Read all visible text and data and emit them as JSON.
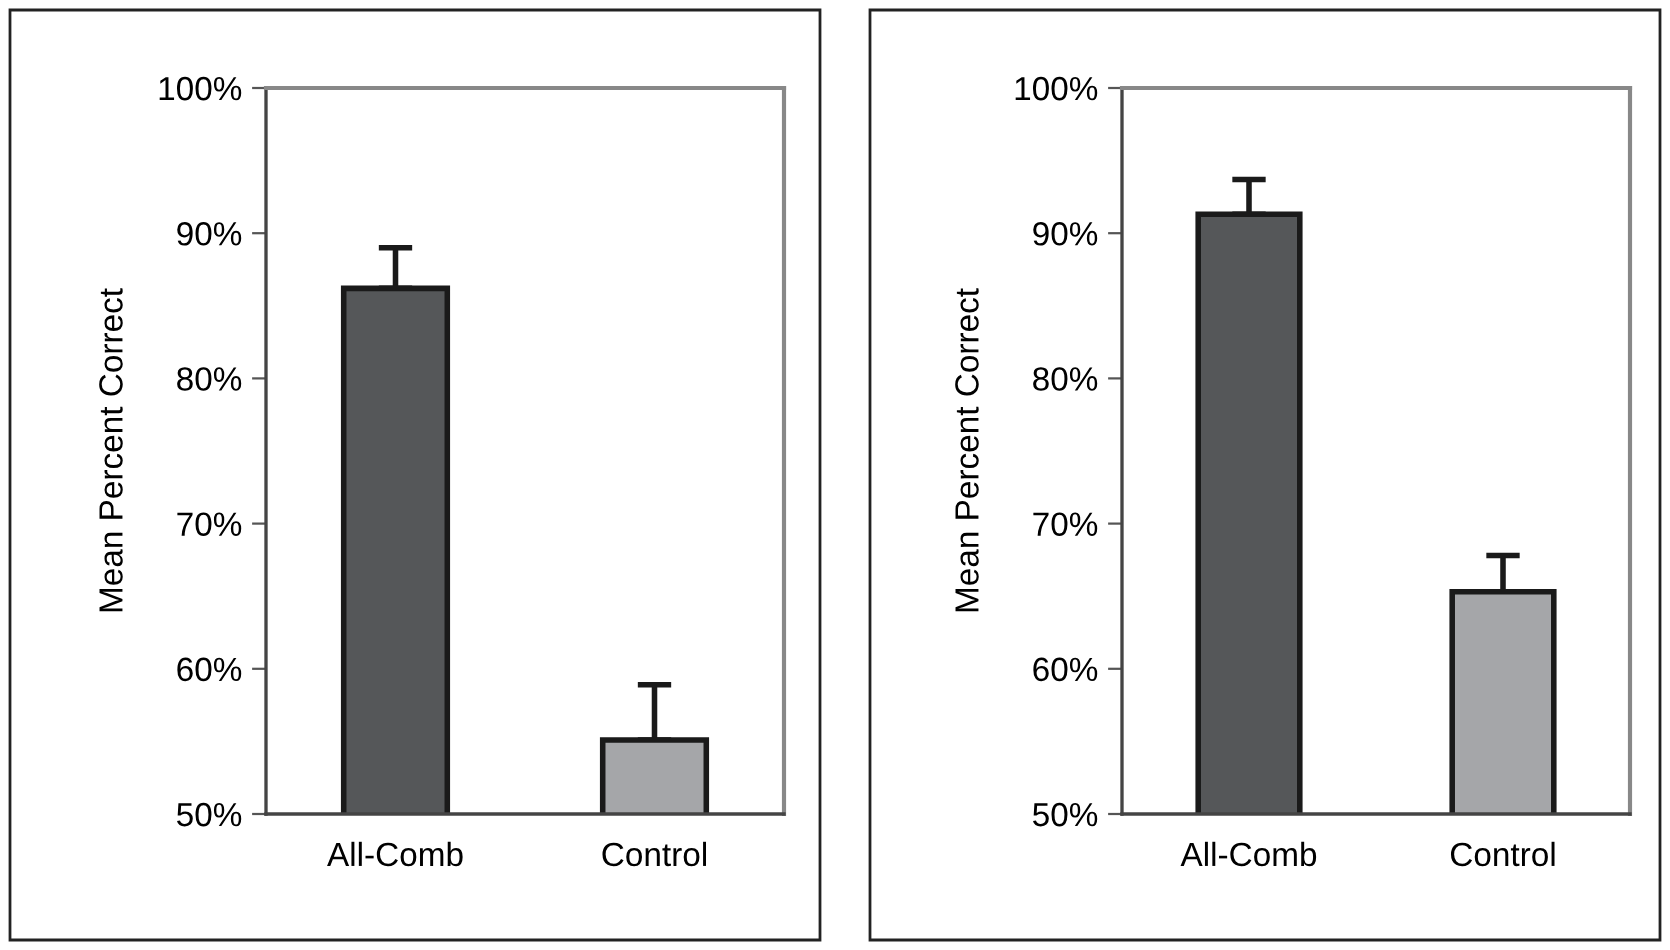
{
  "chart_data": [
    {
      "type": "bar",
      "ylabel": "Mean Percent Correct",
      "categories": [
        "All-Comb",
        "Control"
      ],
      "values": [
        86.2,
        55.1
      ],
      "colors": [
        "#555759",
        "#a5a6a9"
      ],
      "errors": [
        [
          86.2,
          89.0
        ],
        [
          55.1,
          58.9
        ]
      ],
      "ylim": [
        50,
        100
      ],
      "yticks": [
        {
          "value": 50,
          "label": "50%"
        },
        {
          "value": 60,
          "label": "60%"
        },
        {
          "value": 70,
          "label": "70%"
        },
        {
          "value": 80,
          "label": "80%"
        },
        {
          "value": 90,
          "label": "90%"
        },
        {
          "value": 100,
          "label": "100%"
        }
      ]
    },
    {
      "type": "bar",
      "ylabel": "Mean Percent Correct",
      "categories": [
        "All-Comb",
        "Control"
      ],
      "values": [
        91.3,
        65.3
      ],
      "colors": [
        "#555759",
        "#a5a6a9"
      ],
      "errors": [
        [
          91.3,
          93.7
        ],
        [
          65.3,
          67.8
        ]
      ],
      "ylim": [
        50,
        100
      ],
      "yticks": [
        {
          "value": 50,
          "label": "50%"
        },
        {
          "value": 60,
          "label": "60%"
        },
        {
          "value": 70,
          "label": "70%"
        },
        {
          "value": 80,
          "label": "80%"
        },
        {
          "value": 90,
          "label": "90%"
        },
        {
          "value": 100,
          "label": "100%"
        }
      ]
    }
  ]
}
